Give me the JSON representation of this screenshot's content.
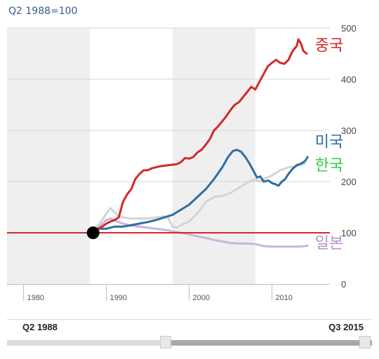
{
  "header": {
    "base_label": "Q2 1988=100"
  },
  "chart_data": {
    "type": "line",
    "title": "",
    "xlabel": "",
    "ylabel": "",
    "xlim": [
      1978,
      2017
    ],
    "ylim": [
      0,
      500
    ],
    "x_ticks": [
      "1980",
      "1990",
      "2000",
      "2010"
    ],
    "y_ticks": [
      "0",
      "100",
      "200",
      "300",
      "400",
      "500"
    ],
    "shaded_decades": [
      [
        1978,
        1988
      ],
      [
        1998,
        2008
      ]
    ],
    "reference_line": {
      "y": 100,
      "color": "#d62728"
    },
    "base_point": {
      "x": 1988.4,
      "y": 100
    },
    "grid": true,
    "series": [
      {
        "name": "중국",
        "color": "#d62728",
        "points": [
          [
            1988.4,
            100
          ],
          [
            1989,
            108
          ],
          [
            1989.5,
            112
          ],
          [
            1990,
            118
          ],
          [
            1990.5,
            122
          ],
          [
            1991,
            125
          ],
          [
            1991.5,
            130
          ],
          [
            1992,
            160
          ],
          [
            1992.5,
            175
          ],
          [
            1993,
            185
          ],
          [
            1993.5,
            205
          ],
          [
            1994,
            215
          ],
          [
            1994.5,
            222
          ],
          [
            1995,
            222
          ],
          [
            1995.5,
            226
          ],
          [
            1996,
            228
          ],
          [
            1996.5,
            230
          ],
          [
            1997,
            231
          ],
          [
            1997.5,
            232
          ],
          [
            1998,
            233
          ],
          [
            1998.5,
            234
          ],
          [
            1999,
            238
          ],
          [
            1999.5,
            246
          ],
          [
            2000,
            245
          ],
          [
            2000.5,
            248
          ],
          [
            2001,
            257
          ],
          [
            2001.5,
            262
          ],
          [
            2002,
            272
          ],
          [
            2002.5,
            283
          ],
          [
            2003,
            300
          ],
          [
            2003.5,
            308
          ],
          [
            2004,
            318
          ],
          [
            2004.5,
            328
          ],
          [
            2005,
            340
          ],
          [
            2005.5,
            350
          ],
          [
            2006,
            355
          ],
          [
            2006.5,
            365
          ],
          [
            2007,
            375
          ],
          [
            2007.5,
            385
          ],
          [
            2008,
            380
          ],
          [
            2008.5,
            395
          ],
          [
            2009,
            410
          ],
          [
            2009.5,
            425
          ],
          [
            2010,
            432
          ],
          [
            2010.5,
            438
          ],
          [
            2011,
            432
          ],
          [
            2011.5,
            430
          ],
          [
            2012,
            438
          ],
          [
            2012.5,
            455
          ],
          [
            2013,
            465
          ],
          [
            2013.2,
            478
          ],
          [
            2013.5,
            470
          ],
          [
            2013.8,
            455
          ],
          [
            2014.2,
            450
          ]
        ]
      },
      {
        "name": "미국",
        "color": "#2e6da4",
        "points": [
          [
            1988.4,
            100
          ],
          [
            1989,
            108
          ],
          [
            1990,
            108
          ],
          [
            1991,
            112
          ],
          [
            1992,
            112
          ],
          [
            1993,
            115
          ],
          [
            1994,
            118
          ],
          [
            1995,
            121
          ],
          [
            1996,
            125
          ],
          [
            1997,
            130
          ],
          [
            1998,
            135
          ],
          [
            1999,
            145
          ],
          [
            2000,
            155
          ],
          [
            2001,
            170
          ],
          [
            2002,
            185
          ],
          [
            2003,
            205
          ],
          [
            2004,
            228
          ],
          [
            2004.7,
            248
          ],
          [
            2005.3,
            260
          ],
          [
            2005.8,
            262
          ],
          [
            2006.3,
            258
          ],
          [
            2006.8,
            248
          ],
          [
            2007.3,
            235
          ],
          [
            2007.8,
            220
          ],
          [
            2008.2,
            208
          ],
          [
            2008.6,
            210
          ],
          [
            2009,
            200
          ],
          [
            2009.6,
            202
          ],
          [
            2010,
            197
          ],
          [
            2010.4,
            195
          ],
          [
            2010.8,
            192
          ],
          [
            2011.2,
            200
          ],
          [
            2011.6,
            205
          ],
          [
            2012,
            215
          ],
          [
            2012.5,
            225
          ],
          [
            2013,
            232
          ],
          [
            2013.5,
            235
          ],
          [
            2014,
            240
          ],
          [
            2014.3,
            248
          ]
        ]
      },
      {
        "name": "한국",
        "color": "#d4d4d4",
        "points": [
          [
            1988.4,
            100
          ],
          [
            1989,
            115
          ],
          [
            1989.5,
            125
          ],
          [
            1990,
            138
          ],
          [
            1990.5,
            148
          ],
          [
            1991,
            140
          ],
          [
            1991.5,
            132
          ],
          [
            1992,
            130
          ],
          [
            1993,
            128
          ],
          [
            1994,
            128
          ],
          [
            1995,
            128
          ],
          [
            1996,
            130
          ],
          [
            1997,
            132
          ],
          [
            1997.5,
            128
          ],
          [
            1998,
            112
          ],
          [
            1998.5,
            110
          ],
          [
            1999,
            115
          ],
          [
            2000,
            122
          ],
          [
            2001,
            138
          ],
          [
            2002,
            160
          ],
          [
            2003,
            170
          ],
          [
            2004,
            172
          ],
          [
            2005,
            178
          ],
          [
            2006,
            188
          ],
          [
            2007,
            198
          ],
          [
            2008,
            205
          ],
          [
            2008.5,
            200
          ],
          [
            2009,
            205
          ],
          [
            2010,
            212
          ],
          [
            2011,
            222
          ],
          [
            2012,
            228
          ],
          [
            2013,
            230
          ],
          [
            2014,
            235
          ]
        ]
      },
      {
        "name": "일본",
        "color": "#c9b6d9",
        "points": [
          [
            1988.4,
            100
          ],
          [
            1989,
            110
          ],
          [
            1990,
            125
          ],
          [
            1990.5,
            128
          ],
          [
            1991,
            124
          ],
          [
            1992,
            118
          ],
          [
            1993,
            114
          ],
          [
            1994,
            112
          ],
          [
            1995,
            110
          ],
          [
            1996,
            108
          ],
          [
            1997,
            106
          ],
          [
            1998,
            103
          ],
          [
            1999,
            100
          ],
          [
            2000,
            97
          ],
          [
            2001,
            93
          ],
          [
            2002,
            90
          ],
          [
            2003,
            86
          ],
          [
            2004,
            83
          ],
          [
            2005,
            80
          ],
          [
            2006,
            79
          ],
          [
            2007,
            79
          ],
          [
            2008,
            78
          ],
          [
            2009,
            74
          ],
          [
            2010,
            73
          ],
          [
            2011,
            73
          ],
          [
            2012,
            73
          ],
          [
            2013,
            73
          ],
          [
            2014,
            74
          ],
          [
            2014.3,
            75
          ]
        ]
      }
    ],
    "series_labels": [
      {
        "text": "중국",
        "color": "#d62728",
        "x": 2015.2,
        "y": 456
      },
      {
        "text": "미국",
        "color": "#2e6da4",
        "x": 2015.2,
        "y": 268
      },
      {
        "text": "한국",
        "color": "#2ecc40",
        "x": 2015.2,
        "y": 222
      },
      {
        "text": "일본",
        "color": "#b78fd0",
        "x": 2015.2,
        "y": 70
      }
    ]
  },
  "range_slider": {
    "start_label": "Q2 1988",
    "end_label": "Q3 2015",
    "start_fraction": 0.435,
    "end_fraction": 1.0
  }
}
